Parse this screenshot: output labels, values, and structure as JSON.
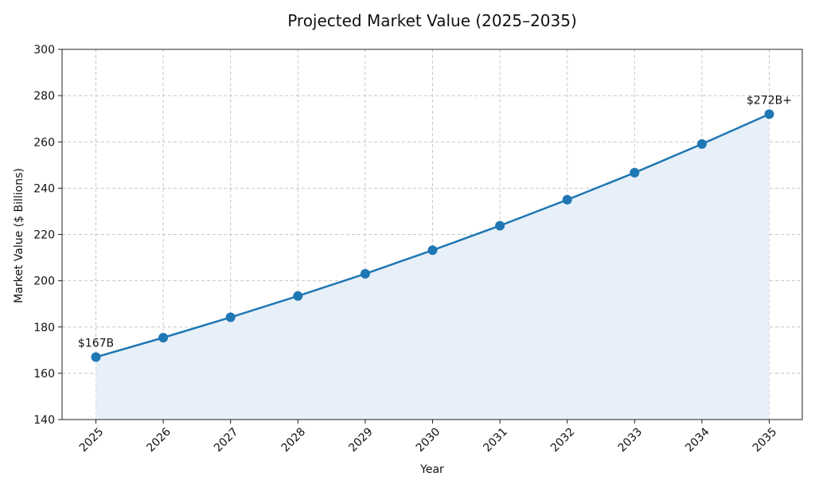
{
  "chart_data": {
    "type": "line",
    "title": "Projected Market Value (2025–2035)",
    "xlabel": "Year",
    "ylabel": "Market Value ($ Billions)",
    "x": [
      "2025",
      "2026",
      "2027",
      "2028",
      "2029",
      "2030",
      "2031",
      "2032",
      "2033",
      "2034",
      "2035"
    ],
    "series": [
      {
        "values": [
          167,
          175.4,
          184.2,
          193.4,
          203,
          213.2,
          223.8,
          235,
          246.7,
          259.1,
          272
        ],
        "color": "#1f77b4",
        "fill_color": "#e7eff8"
      }
    ],
    "ylim": [
      140,
      300
    ],
    "yticks": [
      140,
      160,
      180,
      200,
      220,
      240,
      260,
      280,
      300
    ],
    "grid": true,
    "annotations": [
      {
        "x": "2025",
        "y": 167,
        "text": "$167B"
      },
      {
        "x": "2035",
        "y": 272,
        "text": "$272B+"
      }
    ]
  }
}
